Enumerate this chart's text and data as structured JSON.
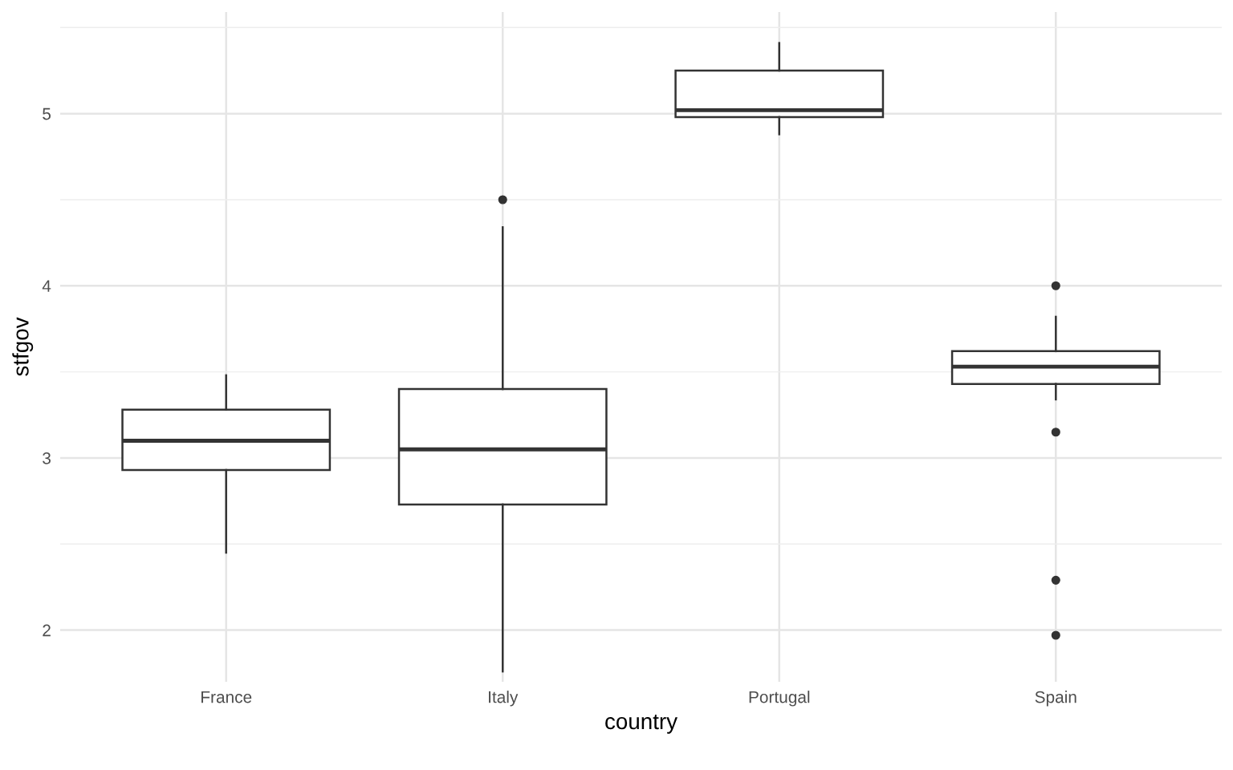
{
  "chart_data": {
    "type": "box",
    "xlabel": "country",
    "ylabel": "stfgov",
    "categories": [
      "France",
      "Italy",
      "Portugal",
      "Spain"
    ],
    "boxes": [
      {
        "low": 2.45,
        "q1": 2.93,
        "median": 3.1,
        "q3": 3.28,
        "high": 3.48
      },
      {
        "low": 1.76,
        "q1": 2.73,
        "median": 3.05,
        "q3": 3.4,
        "high": 4.34,
        "outliers": [
          4.5
        ]
      },
      {
        "low": 4.88,
        "q1": 4.98,
        "median": 5.02,
        "q3": 5.25,
        "high": 5.41
      },
      {
        "low": 3.34,
        "q1": 3.43,
        "median": 3.53,
        "q3": 3.62,
        "high": 3.82,
        "outliers": [
          4.0,
          3.15,
          2.29,
          1.97
        ]
      }
    ],
    "color": "#333333",
    "ylim": [
      1.7,
      5.59
    ],
    "yticks": [
      2,
      {
        "value": 2.5,
        "label": null
      },
      3,
      {
        "value": 3.5,
        "label": null
      },
      4,
      {
        "value": 4.5,
        "label": null
      },
      5,
      {
        "value": 5.5,
        "label": null
      }
    ],
    "grid": true
  }
}
